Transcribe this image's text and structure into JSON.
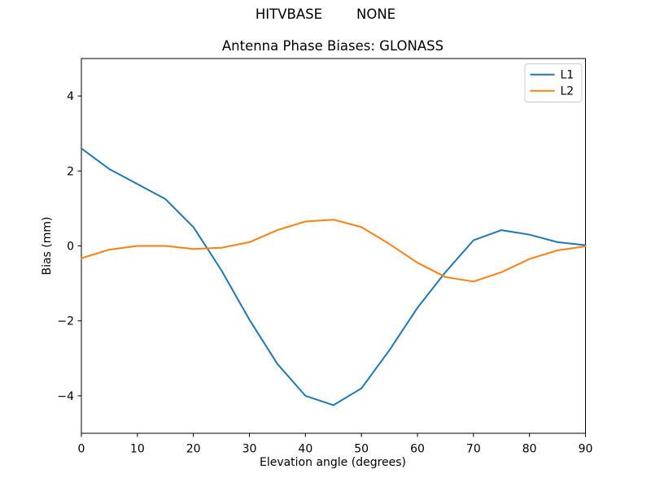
{
  "figure": {
    "suptitle": "HITVBASE        NONE",
    "background_color": "#ffffff",
    "text_color": "#000000"
  },
  "chart_data": {
    "type": "line",
    "title": "Antenna Phase Biases: GLONASS",
    "xlabel": "Elevation angle (degrees)",
    "ylabel": "Bias (mm)",
    "xlim": [
      0,
      90
    ],
    "ylim": [
      -5,
      5
    ],
    "xticks": [
      0,
      10,
      20,
      30,
      40,
      50,
      60,
      70,
      80,
      90
    ],
    "yticks": [
      -4,
      -2,
      0,
      2,
      4
    ],
    "grid": false,
    "legend_position": "upper right",
    "x": [
      0,
      5,
      10,
      15,
      20,
      25,
      30,
      35,
      40,
      45,
      50,
      55,
      60,
      65,
      70,
      75,
      80,
      85,
      90
    ],
    "series": [
      {
        "name": "L1",
        "color": "#1f77b4",
        "values": [
          2.6,
          2.05,
          1.65,
          1.25,
          0.5,
          -0.65,
          -1.97,
          -3.15,
          -4.0,
          -4.25,
          -3.8,
          -2.78,
          -1.65,
          -0.7,
          0.15,
          0.42,
          0.3,
          0.1,
          0.02
        ]
      },
      {
        "name": "L2",
        "color": "#ff7f0e",
        "values": [
          -0.33,
          -0.1,
          0.0,
          0.0,
          -0.08,
          -0.05,
          0.1,
          0.42,
          0.65,
          0.7,
          0.5,
          0.05,
          -0.45,
          -0.83,
          -0.95,
          -0.7,
          -0.35,
          -0.12,
          -0.01
        ]
      }
    ]
  }
}
